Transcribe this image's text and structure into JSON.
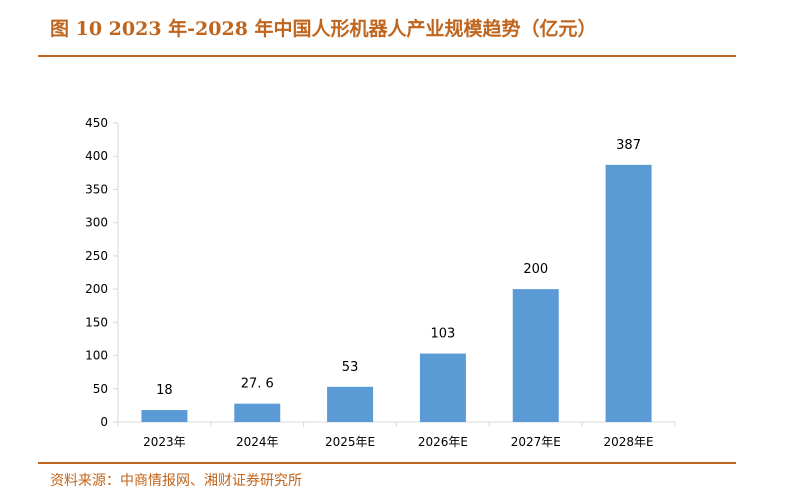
{
  "title": "图 10 2023 年-2028 年中国人形机器人产业规模趋势（亿元）",
  "source": "资料来源：中商情报网、湘财证券研究所",
  "colors": {
    "accent": "#c0651d",
    "bar": "#5b9bd5",
    "axis": "#d9d9d9"
  },
  "chart_data": {
    "type": "bar",
    "title": "2023 年-2028 年中国人形机器人产业规模趋势（亿元）",
    "xlabel": "",
    "ylabel": "",
    "categories": [
      "2023年",
      "2024年",
      "2025年E",
      "2026年E",
      "2027年E",
      "2028年E"
    ],
    "values": [
      18,
      27.6,
      53,
      103,
      200,
      387
    ],
    "value_labels": [
      "18",
      "27. 6",
      "53",
      "103",
      "200",
      "387"
    ],
    "ylim": [
      0,
      450
    ],
    "yticks": [
      0,
      50,
      100,
      150,
      200,
      250,
      300,
      350,
      400,
      450
    ],
    "grid": false,
    "legend": "none"
  }
}
